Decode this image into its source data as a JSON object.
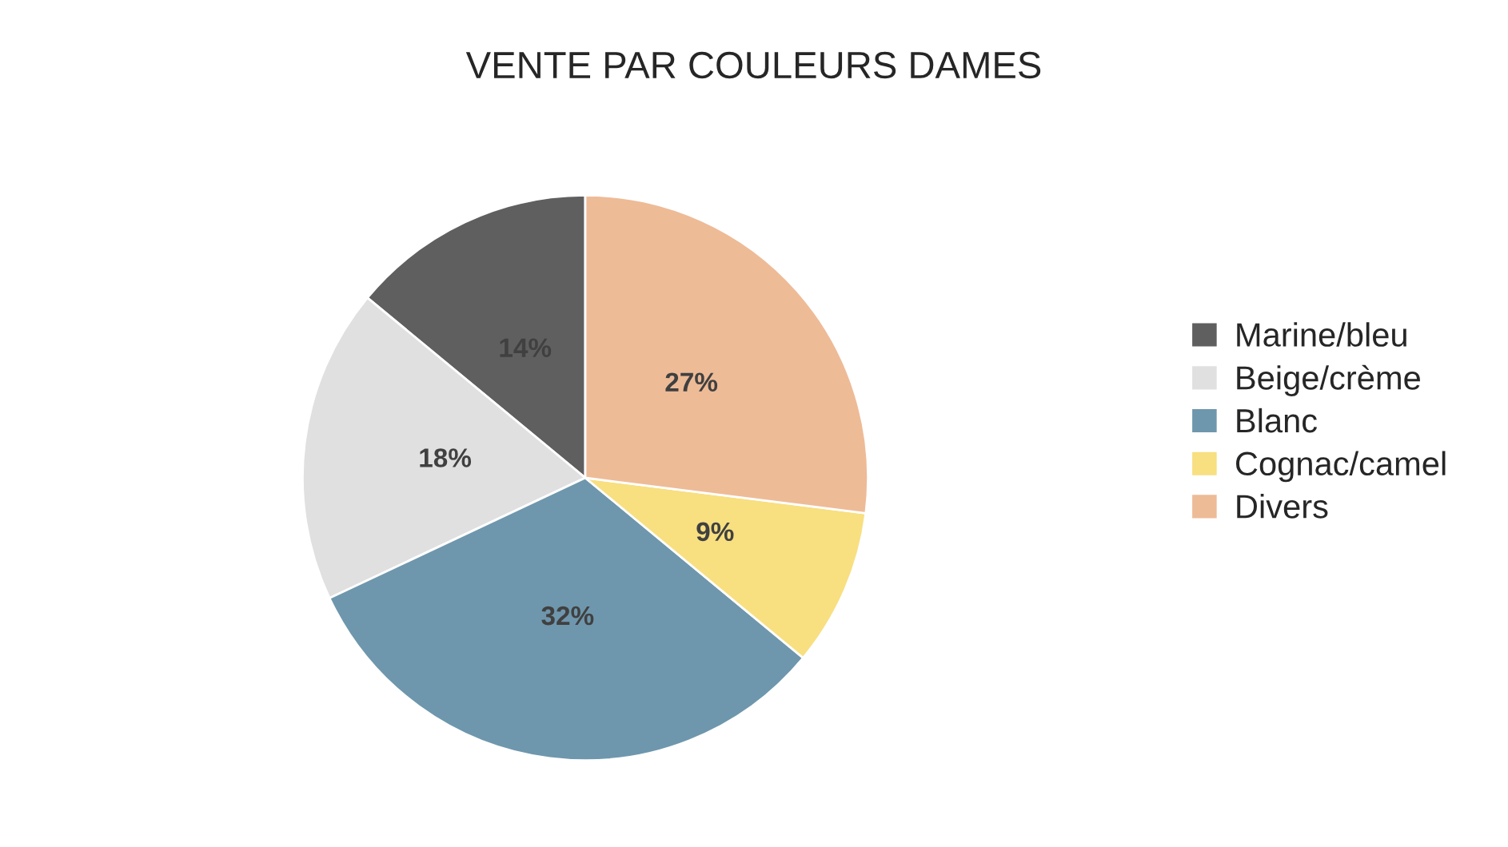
{
  "chart_data": {
    "type": "pie",
    "title": "VENTE PAR COULEURS DAMES",
    "categories": [
      "Marine/bleu",
      "Beige/crème",
      "Blanc",
      "Cognac/camel",
      "Divers"
    ],
    "values": [
      14,
      18,
      32,
      9,
      27
    ],
    "value_labels": [
      "14%",
      "18%",
      "32%",
      "9%",
      "27%"
    ],
    "colors": [
      "#5f5f5f",
      "#e0e0e0",
      "#6e97ad",
      "#f8df80",
      "#eebb97"
    ],
    "legend": "right"
  }
}
